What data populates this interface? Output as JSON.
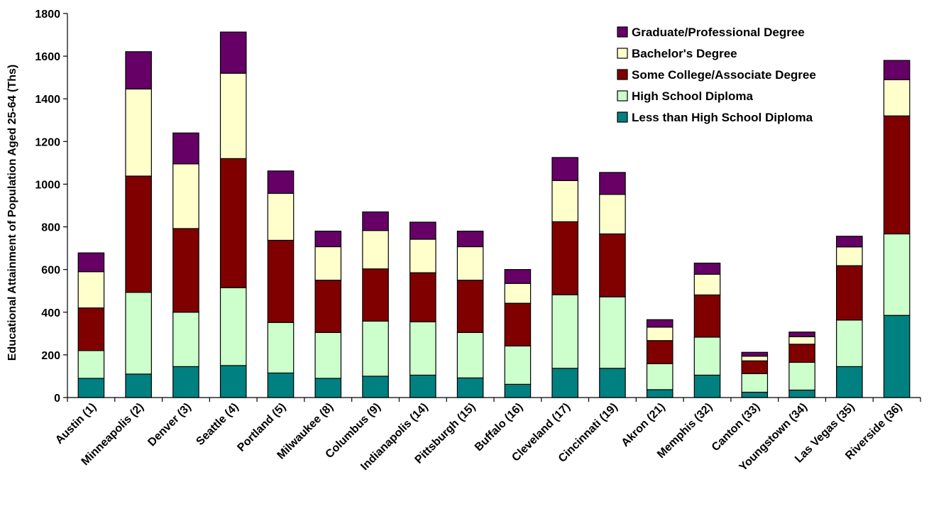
{
  "chart_data": {
    "type": "bar",
    "stacked": true,
    "title": "",
    "xlabel": "",
    "ylabel": "Educational Attainment of Population Aged 25-64 (Ths)",
    "ylim": [
      0,
      1800
    ],
    "yticks": [
      0,
      200,
      400,
      600,
      800,
      1000,
      1200,
      1400,
      1600,
      1800
    ],
    "grid": false,
    "legend_position": "top-right",
    "categories": [
      "Austin (1)",
      "Minneapolis (2)",
      "Denver (3)",
      "Seattle (4)",
      "Portland (5)",
      "Milwaukee (8)",
      "Columbus (9)",
      "Indianapolis (14)",
      "Pittsburgh (15)",
      "Buffalo (16)",
      "Cleveland (17)",
      "Cincinnati (19)",
      "Akron (21)",
      "Memphis (32)",
      "Canton (33)",
      "Youngstown (34)",
      "Las Vegas (35)",
      "Riverside (36)"
    ],
    "series": [
      {
        "name": "Less than High School Diploma",
        "color": "#008080",
        "values": [
          90,
          110,
          145,
          150,
          115,
          90,
          100,
          105,
          92,
          62,
          137,
          137,
          37,
          105,
          25,
          35,
          145,
          385
        ]
      },
      {
        "name": "High School Diploma",
        "color": "#CCFFCC",
        "values": [
          130,
          383,
          255,
          365,
          237,
          215,
          258,
          250,
          213,
          180,
          345,
          335,
          122,
          178,
          87,
          130,
          218,
          382
        ]
      },
      {
        "name": "Some College/Associate Degree",
        "color": "#800000",
        "values": [
          200,
          545,
          392,
          605,
          385,
          245,
          245,
          230,
          245,
          200,
          342,
          295,
          108,
          198,
          60,
          85,
          255,
          553
        ]
      },
      {
        "name": "Bachelor's Degree",
        "color": "#FFFFCC",
        "values": [
          170,
          408,
          303,
          400,
          220,
          157,
          180,
          157,
          157,
          93,
          193,
          185,
          63,
          97,
          22,
          35,
          88,
          170
        ]
      },
      {
        "name": "Graduate/Professional Degree",
        "color": "#660066",
        "values": [
          88,
          175,
          145,
          193,
          105,
          73,
          87,
          80,
          73,
          65,
          108,
          103,
          35,
          52,
          18,
          22,
          50,
          90
        ]
      }
    ]
  }
}
